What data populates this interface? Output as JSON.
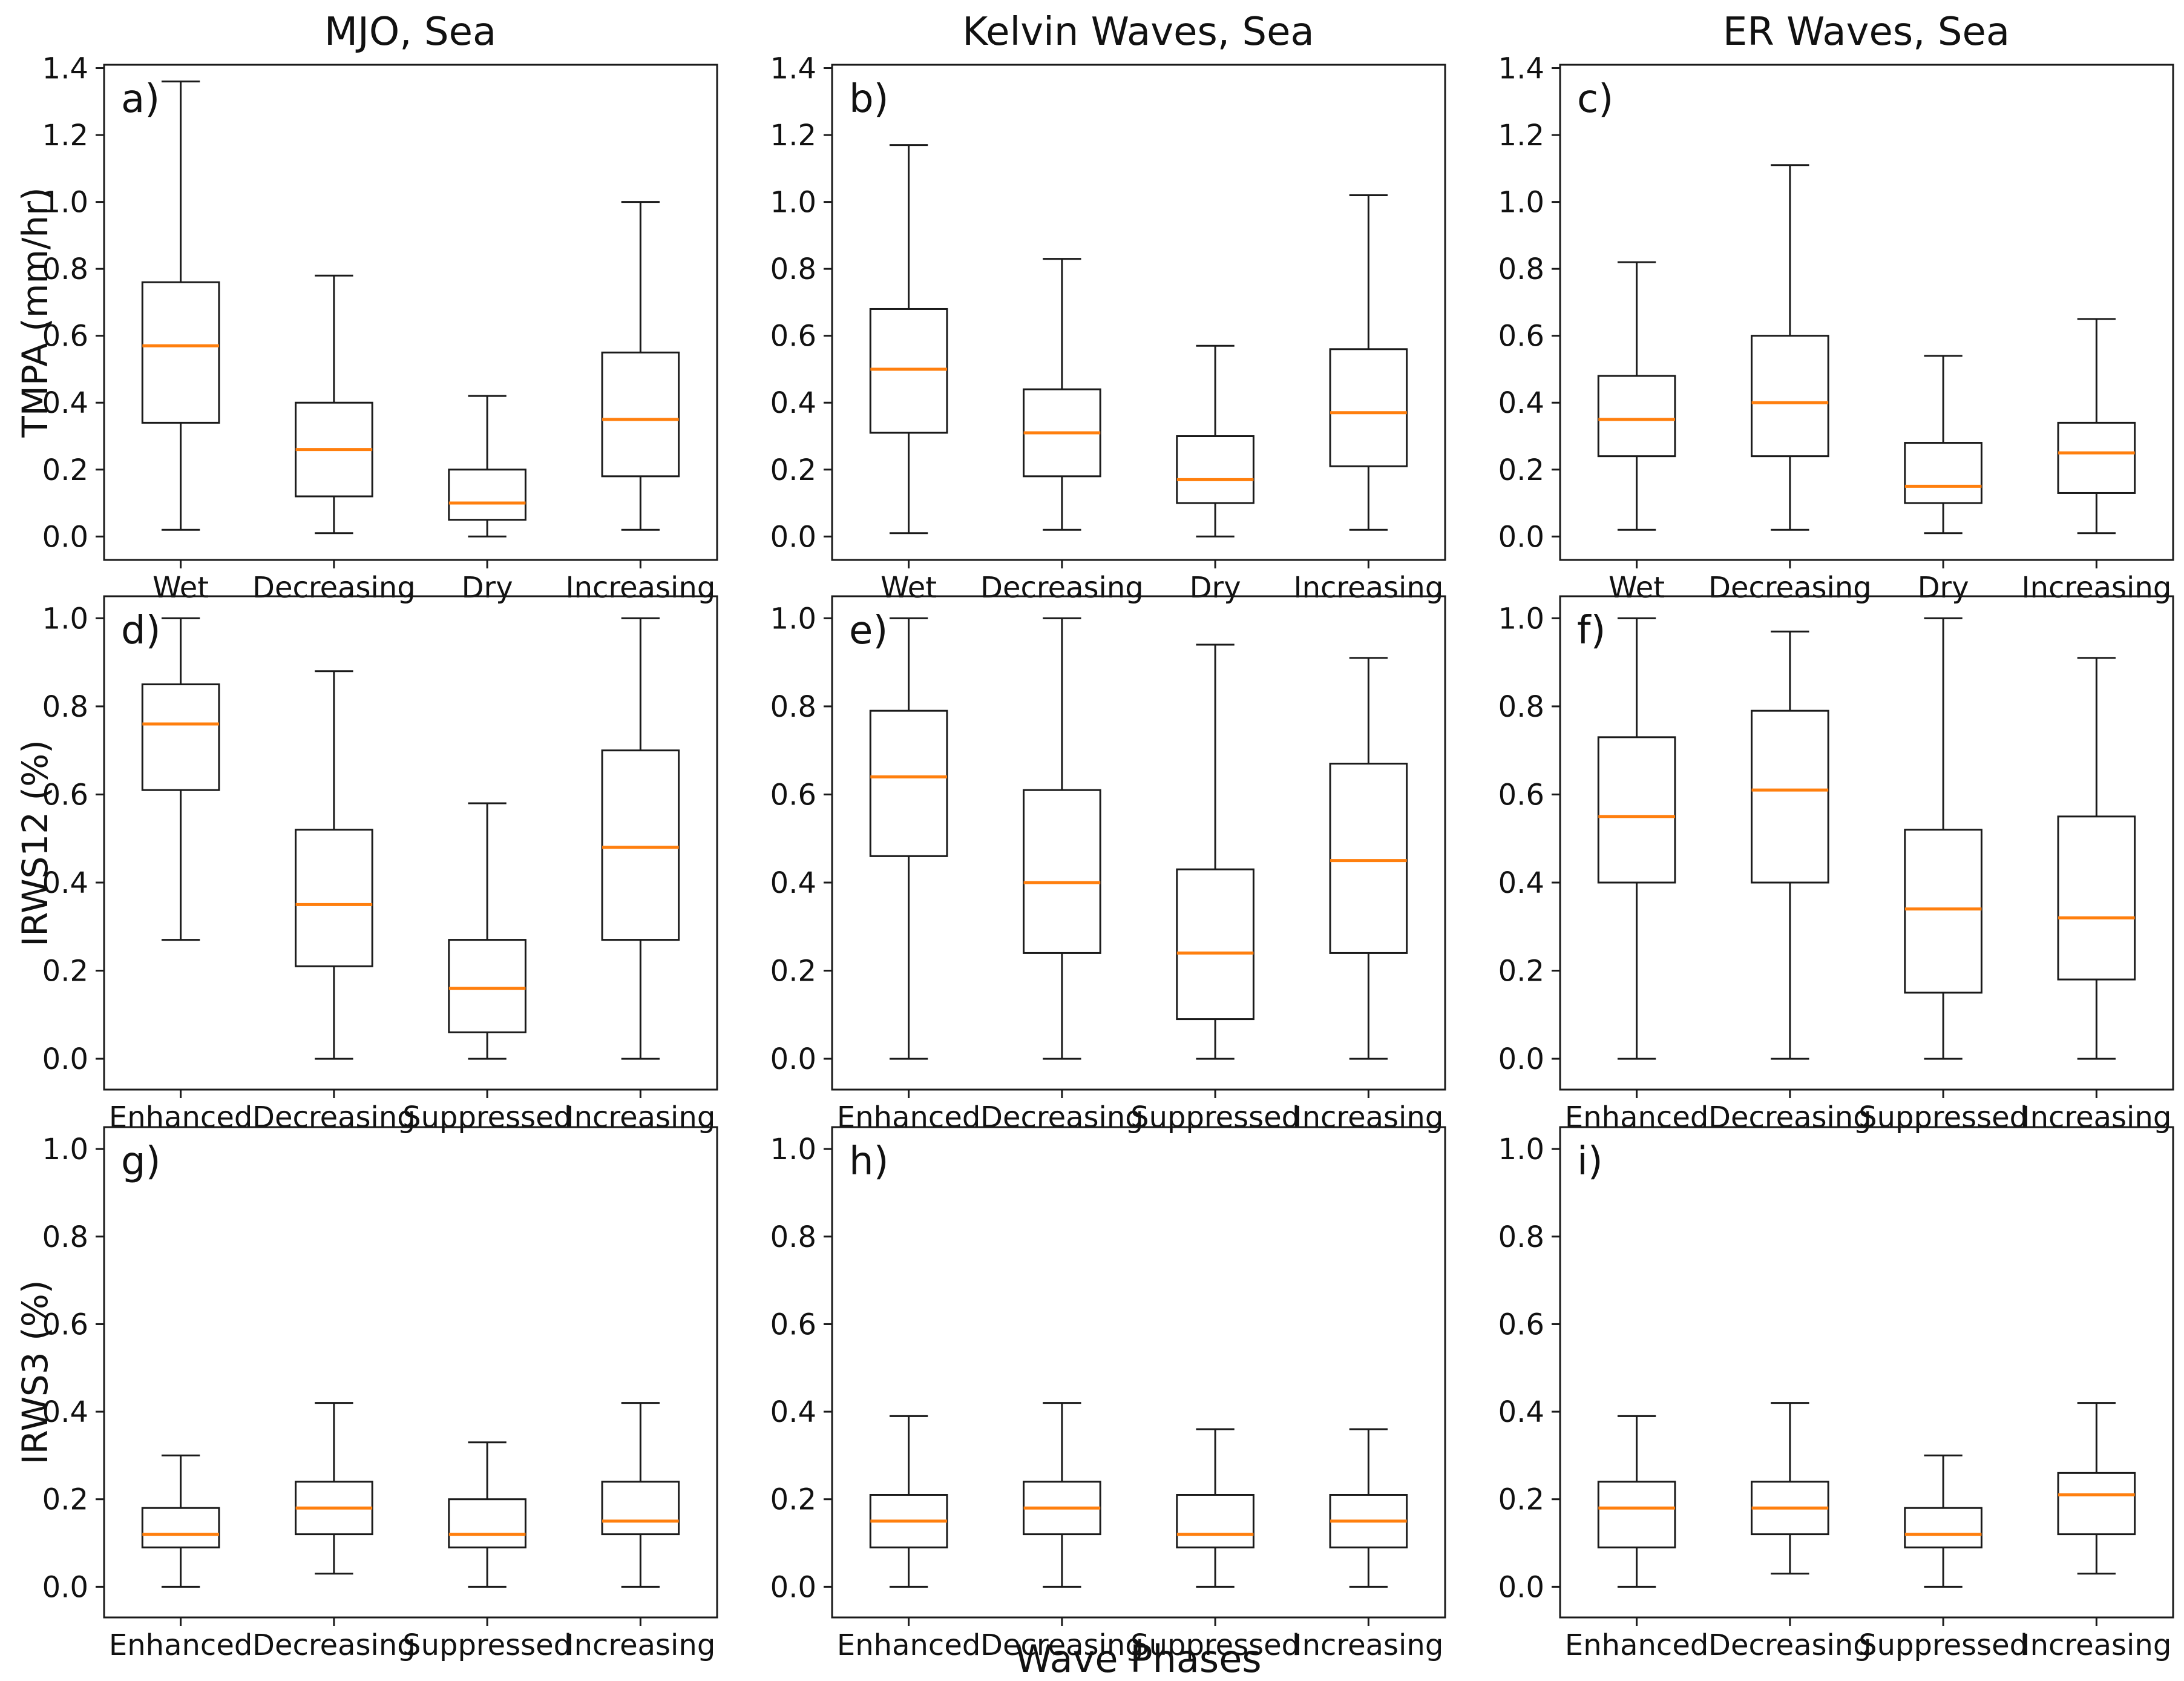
{
  "figure": {
    "xlabel": "Wave Phases",
    "background_color": "#ffffff",
    "axis_color": "#1a1a1a",
    "median_color": "#ff7f0e",
    "col_titles": [
      "MJO, Sea",
      "Kelvin Waves, Sea",
      "ER Waves, Sea"
    ],
    "row_ylabels": [
      "TMPA (mm/hr)",
      "IRWS12 (%)",
      "IRWS3 (%)"
    ]
  },
  "chart_data": [
    {
      "type": "boxplot",
      "letter": "a)",
      "row": 0,
      "col": 0,
      "title": "MJO, Sea",
      "ylabel": "TMPA (mm/hr)",
      "ylim": [
        -0.07,
        1.41
      ],
      "yticks": [
        0.0,
        0.2,
        0.4,
        0.6,
        0.8,
        1.0,
        1.2,
        1.4
      ],
      "categories": [
        "Wet",
        "Decreasing",
        "Dry",
        "Increasing"
      ],
      "boxes": [
        {
          "label": "Wet",
          "whislo": 0.02,
          "q1": 0.34,
          "med": 0.57,
          "q3": 0.76,
          "whishi": 1.36
        },
        {
          "label": "Decreasing",
          "whislo": 0.01,
          "q1": 0.12,
          "med": 0.26,
          "q3": 0.4,
          "whishi": 0.78
        },
        {
          "label": "Dry",
          "whislo": 0.0,
          "q1": 0.05,
          "med": 0.1,
          "q3": 0.2,
          "whishi": 0.42
        },
        {
          "label": "Increasing",
          "whislo": 0.02,
          "q1": 0.18,
          "med": 0.35,
          "q3": 0.55,
          "whishi": 1.0
        }
      ]
    },
    {
      "type": "boxplot",
      "letter": "b)",
      "row": 0,
      "col": 1,
      "title": "Kelvin Waves, Sea",
      "ylabel": "TMPA (mm/hr)",
      "ylim": [
        -0.07,
        1.41
      ],
      "yticks": [
        0.0,
        0.2,
        0.4,
        0.6,
        0.8,
        1.0,
        1.2,
        1.4
      ],
      "categories": [
        "Wet",
        "Decreasing",
        "Dry",
        "Increasing"
      ],
      "boxes": [
        {
          "label": "Wet",
          "whislo": 0.01,
          "q1": 0.31,
          "med": 0.5,
          "q3": 0.68,
          "whishi": 1.17
        },
        {
          "label": "Decreasing",
          "whislo": 0.02,
          "q1": 0.18,
          "med": 0.31,
          "q3": 0.44,
          "whishi": 0.83
        },
        {
          "label": "Dry",
          "whislo": 0.0,
          "q1": 0.1,
          "med": 0.17,
          "q3": 0.3,
          "whishi": 0.57
        },
        {
          "label": "Increasing",
          "whislo": 0.02,
          "q1": 0.21,
          "med": 0.37,
          "q3": 0.56,
          "whishi": 1.02
        }
      ]
    },
    {
      "type": "boxplot",
      "letter": "c)",
      "row": 0,
      "col": 2,
      "title": "ER Waves, Sea",
      "ylabel": "TMPA (mm/hr)",
      "ylim": [
        -0.07,
        1.41
      ],
      "yticks": [
        0.0,
        0.2,
        0.4,
        0.6,
        0.8,
        1.0,
        1.2,
        1.4
      ],
      "categories": [
        "Wet",
        "Decreasing",
        "Dry",
        "Increasing"
      ],
      "boxes": [
        {
          "label": "Wet",
          "whislo": 0.02,
          "q1": 0.24,
          "med": 0.35,
          "q3": 0.48,
          "whishi": 0.82
        },
        {
          "label": "Decreasing",
          "whislo": 0.02,
          "q1": 0.24,
          "med": 0.4,
          "q3": 0.6,
          "whishi": 1.11
        },
        {
          "label": "Dry",
          "whislo": 0.01,
          "q1": 0.1,
          "med": 0.15,
          "q3": 0.28,
          "whishi": 0.54
        },
        {
          "label": "Increasing",
          "whislo": 0.01,
          "q1": 0.13,
          "med": 0.25,
          "q3": 0.34,
          "whishi": 0.65
        }
      ]
    },
    {
      "type": "boxplot",
      "letter": "d)",
      "row": 1,
      "col": 0,
      "title": "",
      "ylabel": "IRWS12 (%)",
      "ylim": [
        -0.07,
        1.05
      ],
      "yticks": [
        0.0,
        0.2,
        0.4,
        0.6,
        0.8,
        1.0
      ],
      "categories": [
        "Enhanced",
        "Decreasing",
        "Suppressed",
        "Increasing"
      ],
      "boxes": [
        {
          "label": "Enhanced",
          "whislo": 0.27,
          "q1": 0.61,
          "med": 0.76,
          "q3": 0.85,
          "whishi": 1.0
        },
        {
          "label": "Decreasing",
          "whislo": 0.0,
          "q1": 0.21,
          "med": 0.35,
          "q3": 0.52,
          "whishi": 0.88
        },
        {
          "label": "Suppressed",
          "whislo": 0.0,
          "q1": 0.06,
          "med": 0.16,
          "q3": 0.27,
          "whishi": 0.58
        },
        {
          "label": "Increasing",
          "whislo": 0.0,
          "q1": 0.27,
          "med": 0.48,
          "q3": 0.7,
          "whishi": 1.0
        }
      ]
    },
    {
      "type": "boxplot",
      "letter": "e)",
      "row": 1,
      "col": 1,
      "title": "",
      "ylabel": "IRWS12 (%)",
      "ylim": [
        -0.07,
        1.05
      ],
      "yticks": [
        0.0,
        0.2,
        0.4,
        0.6,
        0.8,
        1.0
      ],
      "categories": [
        "Enhanced",
        "Decreasing",
        "Suppressed",
        "Increasing"
      ],
      "boxes": [
        {
          "label": "Enhanced",
          "whislo": 0.0,
          "q1": 0.46,
          "med": 0.64,
          "q3": 0.79,
          "whishi": 1.0
        },
        {
          "label": "Decreasing",
          "whislo": 0.0,
          "q1": 0.24,
          "med": 0.4,
          "q3": 0.61,
          "whishi": 1.0
        },
        {
          "label": "Suppressed",
          "whislo": 0.0,
          "q1": 0.09,
          "med": 0.24,
          "q3": 0.43,
          "whishi": 0.94
        },
        {
          "label": "Increasing",
          "whislo": 0.0,
          "q1": 0.24,
          "med": 0.45,
          "q3": 0.67,
          "whishi": 0.91
        }
      ]
    },
    {
      "type": "boxplot",
      "letter": "f)",
      "row": 1,
      "col": 2,
      "title": "",
      "ylabel": "IRWS12 (%)",
      "ylim": [
        -0.07,
        1.05
      ],
      "yticks": [
        0.0,
        0.2,
        0.4,
        0.6,
        0.8,
        1.0
      ],
      "categories": [
        "Enhanced",
        "Decreasing",
        "Suppressed",
        "Increasing"
      ],
      "boxes": [
        {
          "label": "Enhanced",
          "whislo": 0.0,
          "q1": 0.4,
          "med": 0.55,
          "q3": 0.73,
          "whishi": 1.0
        },
        {
          "label": "Decreasing",
          "whislo": 0.0,
          "q1": 0.4,
          "med": 0.61,
          "q3": 0.79,
          "whishi": 0.97
        },
        {
          "label": "Suppressed",
          "whislo": 0.0,
          "q1": 0.15,
          "med": 0.34,
          "q3": 0.52,
          "whishi": 1.0
        },
        {
          "label": "Increasing",
          "whislo": 0.0,
          "q1": 0.18,
          "med": 0.32,
          "q3": 0.55,
          "whishi": 0.91
        }
      ]
    },
    {
      "type": "boxplot",
      "letter": "g)",
      "row": 2,
      "col": 0,
      "title": "",
      "ylabel": "IRWS3 (%)",
      "ylim": [
        -0.07,
        1.05
      ],
      "yticks": [
        0.0,
        0.2,
        0.4,
        0.6,
        0.8,
        1.0
      ],
      "categories": [
        "Enhanced",
        "Decreasing",
        "Suppressed",
        "Increasing"
      ],
      "boxes": [
        {
          "label": "Enhanced",
          "whislo": 0.0,
          "q1": 0.09,
          "med": 0.12,
          "q3": 0.18,
          "whishi": 0.3
        },
        {
          "label": "Decreasing",
          "whislo": 0.03,
          "q1": 0.12,
          "med": 0.18,
          "q3": 0.24,
          "whishi": 0.42
        },
        {
          "label": "Suppressed",
          "whislo": 0.0,
          "q1": 0.09,
          "med": 0.12,
          "q3": 0.2,
          "whishi": 0.33
        },
        {
          "label": "Increasing",
          "whislo": 0.0,
          "q1": 0.12,
          "med": 0.15,
          "q3": 0.24,
          "whishi": 0.42
        }
      ]
    },
    {
      "type": "boxplot",
      "letter": "h)",
      "row": 2,
      "col": 1,
      "title": "",
      "ylabel": "IRWS3 (%)",
      "ylim": [
        -0.07,
        1.05
      ],
      "yticks": [
        0.0,
        0.2,
        0.4,
        0.6,
        0.8,
        1.0
      ],
      "categories": [
        "Enhanced",
        "Decreasing",
        "Suppressed",
        "Increasing"
      ],
      "boxes": [
        {
          "label": "Enhanced",
          "whislo": 0.0,
          "q1": 0.09,
          "med": 0.15,
          "q3": 0.21,
          "whishi": 0.39
        },
        {
          "label": "Decreasing",
          "whislo": 0.0,
          "q1": 0.12,
          "med": 0.18,
          "q3": 0.24,
          "whishi": 0.42
        },
        {
          "label": "Suppressed",
          "whislo": 0.0,
          "q1": 0.09,
          "med": 0.12,
          "q3": 0.21,
          "whishi": 0.36
        },
        {
          "label": "Increasing",
          "whislo": 0.0,
          "q1": 0.09,
          "med": 0.15,
          "q3": 0.21,
          "whishi": 0.36
        }
      ]
    },
    {
      "type": "boxplot",
      "letter": "i)",
      "row": 2,
      "col": 2,
      "title": "",
      "ylabel": "IRWS3 (%)",
      "ylim": [
        -0.07,
        1.05
      ],
      "yticks": [
        0.0,
        0.2,
        0.4,
        0.6,
        0.8,
        1.0
      ],
      "categories": [
        "Enhanced",
        "Decreasing",
        "Suppressed",
        "Increasing"
      ],
      "boxes": [
        {
          "label": "Enhanced",
          "whislo": 0.0,
          "q1": 0.09,
          "med": 0.18,
          "q3": 0.24,
          "whishi": 0.39
        },
        {
          "label": "Decreasing",
          "whislo": 0.03,
          "q1": 0.12,
          "med": 0.18,
          "q3": 0.24,
          "whishi": 0.42
        },
        {
          "label": "Suppressed",
          "whislo": 0.0,
          "q1": 0.09,
          "med": 0.12,
          "q3": 0.18,
          "whishi": 0.3
        },
        {
          "label": "Increasing",
          "whislo": 0.03,
          "q1": 0.12,
          "med": 0.21,
          "q3": 0.26,
          "whishi": 0.42
        }
      ]
    }
  ]
}
